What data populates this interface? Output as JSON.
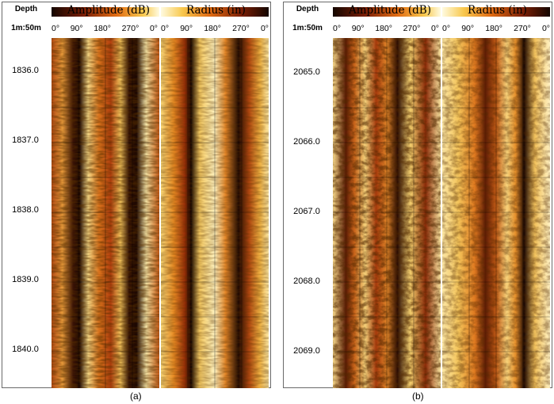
{
  "panels": [
    {
      "id": "a",
      "depth_header": "Depth",
      "depth_scale": "1m:50m",
      "amp_title": "Amplitude (dB)",
      "rad_title": "Radius (in)",
      "amp_ticks": [
        "0°",
        "90°",
        "180°",
        "270°",
        "0°"
      ],
      "rad_ticks": [
        "0°",
        "90°",
        "180°",
        "270°",
        "0°"
      ],
      "depths": [
        "1836.0",
        "1837.0",
        "1838.0",
        "1839.0",
        "1840.0"
      ],
      "caption": "(a)"
    },
    {
      "id": "b",
      "depth_header": "Depth",
      "depth_scale": "1m:50m",
      "amp_title": "Amplitude (dB)",
      "rad_title": "Radius (in)",
      "amp_ticks": [
        "0°",
        "90°",
        "180°",
        "270°",
        "0°"
      ],
      "rad_ticks": [
        "0°",
        "90°",
        "180°",
        "270°",
        "0°"
      ],
      "depths": [
        "2065.0",
        "2066.0",
        "2067.0",
        "2068.0",
        "2069.0"
      ],
      "caption": "(b)"
    }
  ],
  "colors": {
    "dark": "#1a0b05",
    "mid": "#b5400f",
    "orange": "#e88a1c",
    "light": "#f6d566",
    "pale": "#fff6c8"
  }
}
